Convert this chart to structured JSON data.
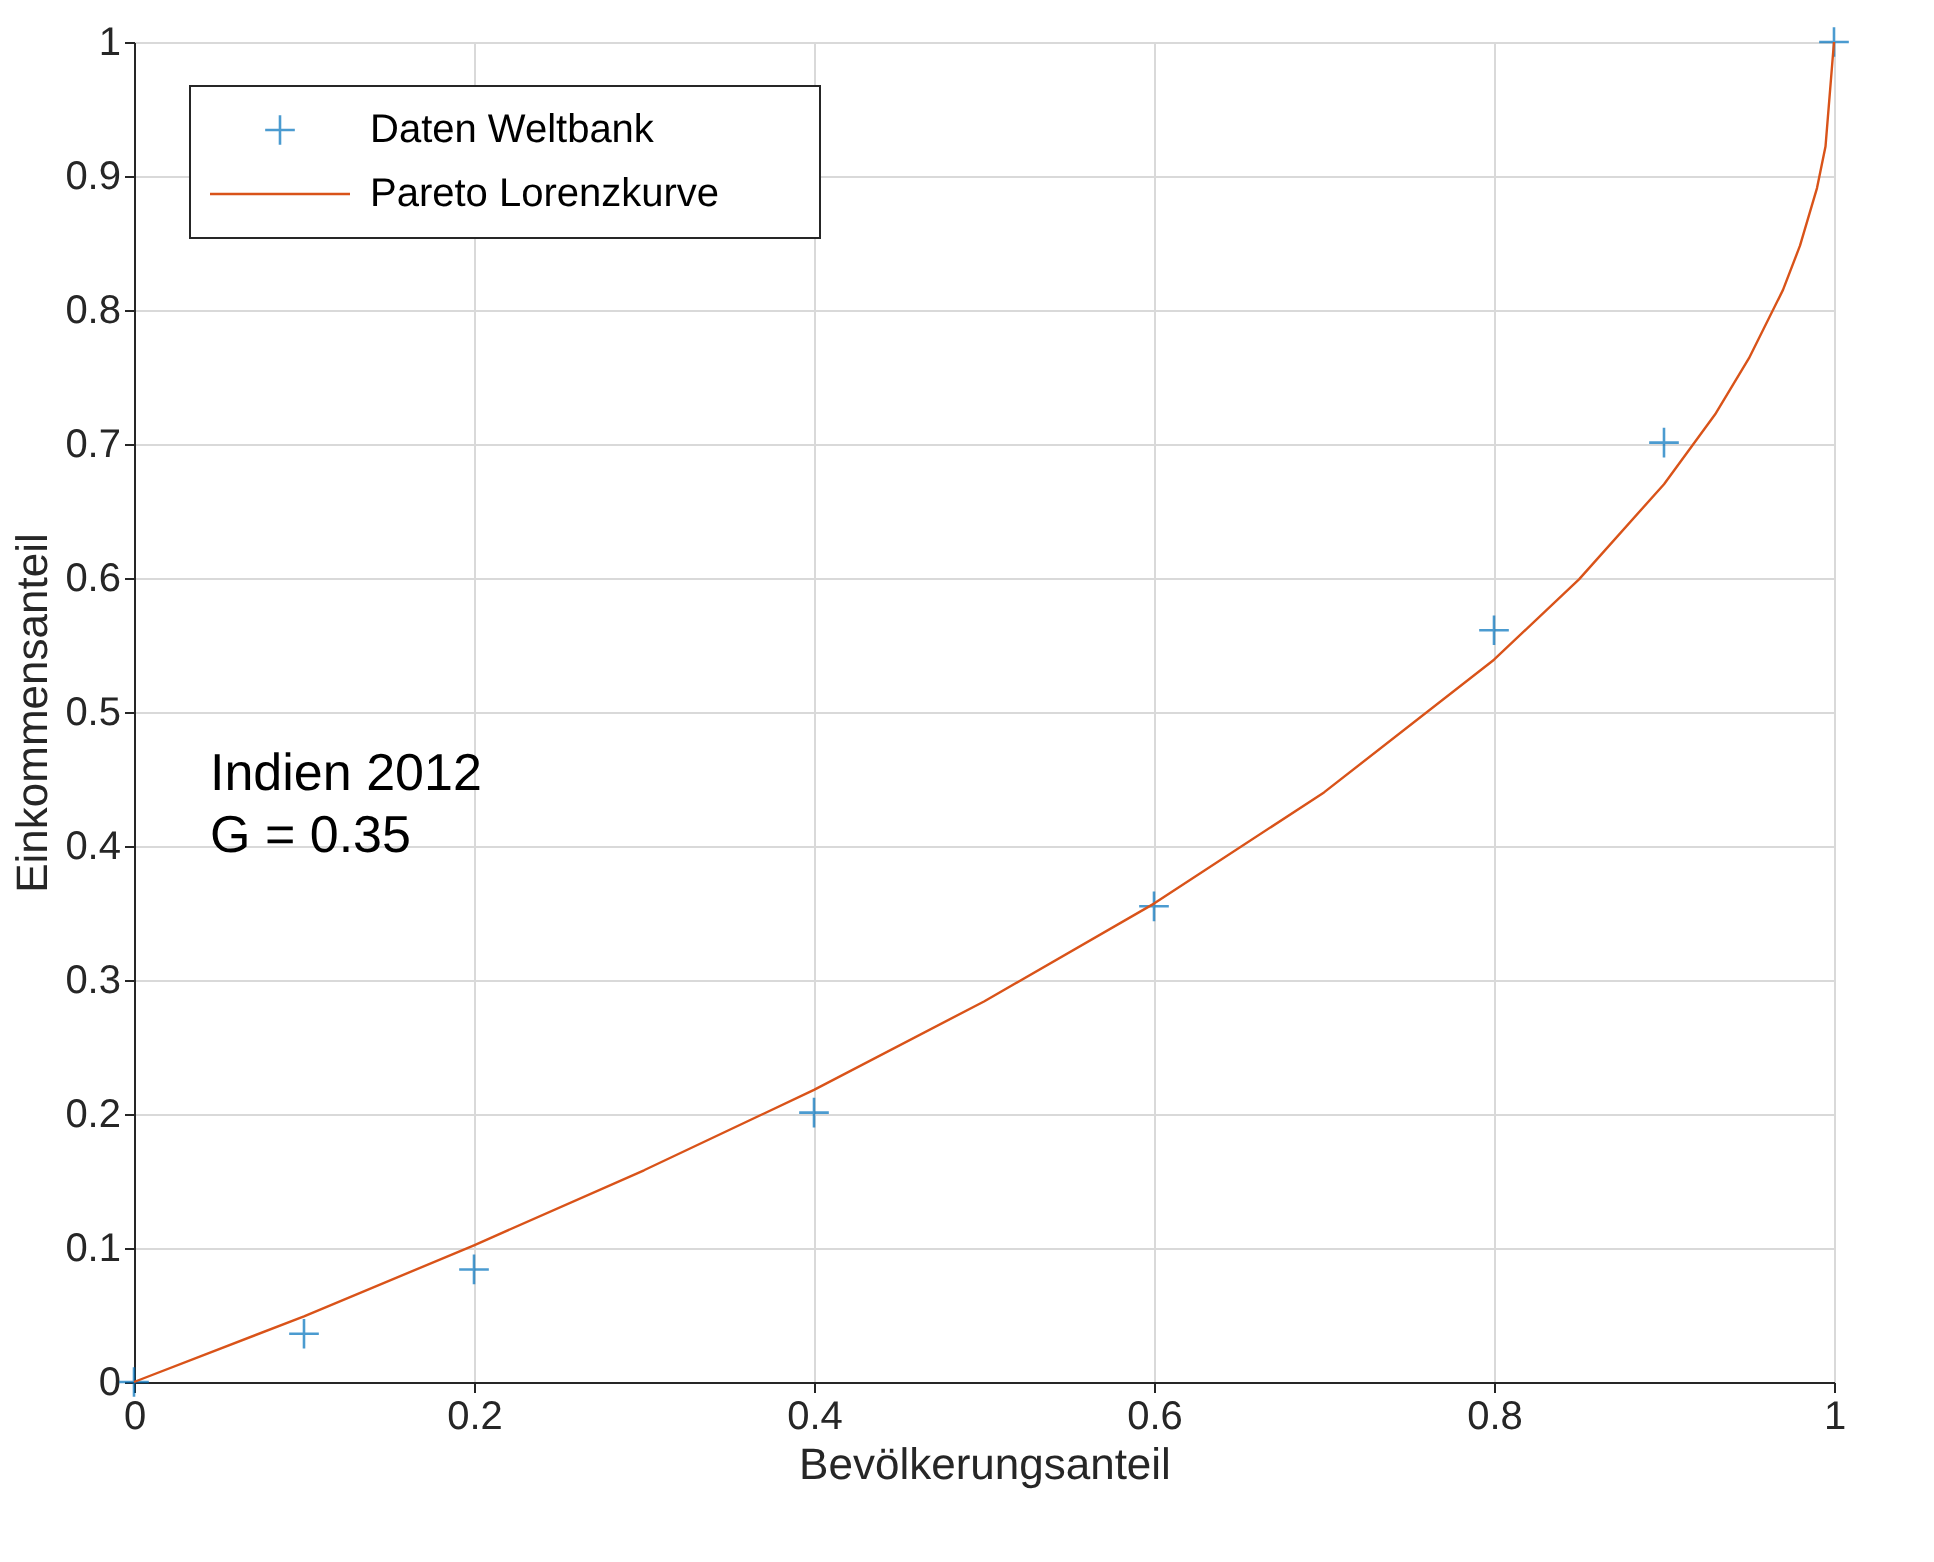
{
  "chart_data": {
    "type": "scatter",
    "xlabel": "Bevölkerungsanteil",
    "ylabel": "Einkommensanteil",
    "annotations": [
      "Indien  2012",
      "G =  0.35"
    ],
    "series": [
      {
        "name": "Daten Weltbank",
        "marker": "cross",
        "color": "#0072bd",
        "x": [
          0,
          0.1,
          0.2,
          0.4,
          0.6,
          0.8,
          0.9,
          1
        ],
        "values": [
          0,
          0.036,
          0.084,
          0.201,
          0.355,
          0.561,
          0.701,
          1
        ]
      },
      {
        "name": "Pareto Lorenzkurve",
        "type": "line",
        "line_style": "solid",
        "color": "#d95319",
        "x": [
          0,
          0.1,
          0.2,
          0.3,
          0.4,
          0.5,
          0.6,
          0.7,
          0.8,
          0.85,
          0.9,
          0.93,
          0.95,
          0.97,
          0.98,
          0.99,
          0.995,
          1
        ],
        "values": [
          0,
          0.049,
          0.102,
          0.158,
          0.218,
          0.284,
          0.357,
          0.44,
          0.539,
          0.599,
          0.67,
          0.722,
          0.764,
          0.815,
          0.848,
          0.891,
          0.922,
          1
        ]
      }
    ],
    "xlim": [
      0,
      1
    ],
    "ylim": [
      0,
      1
    ],
    "xticks": [
      0,
      0.2,
      0.4,
      0.6,
      0.8,
      1
    ],
    "yticks": [
      0,
      0.1,
      0.2,
      0.3,
      0.4,
      0.5,
      0.6,
      0.7,
      0.8,
      0.9,
      1
    ],
    "grid": true,
    "legend": "top left"
  }
}
